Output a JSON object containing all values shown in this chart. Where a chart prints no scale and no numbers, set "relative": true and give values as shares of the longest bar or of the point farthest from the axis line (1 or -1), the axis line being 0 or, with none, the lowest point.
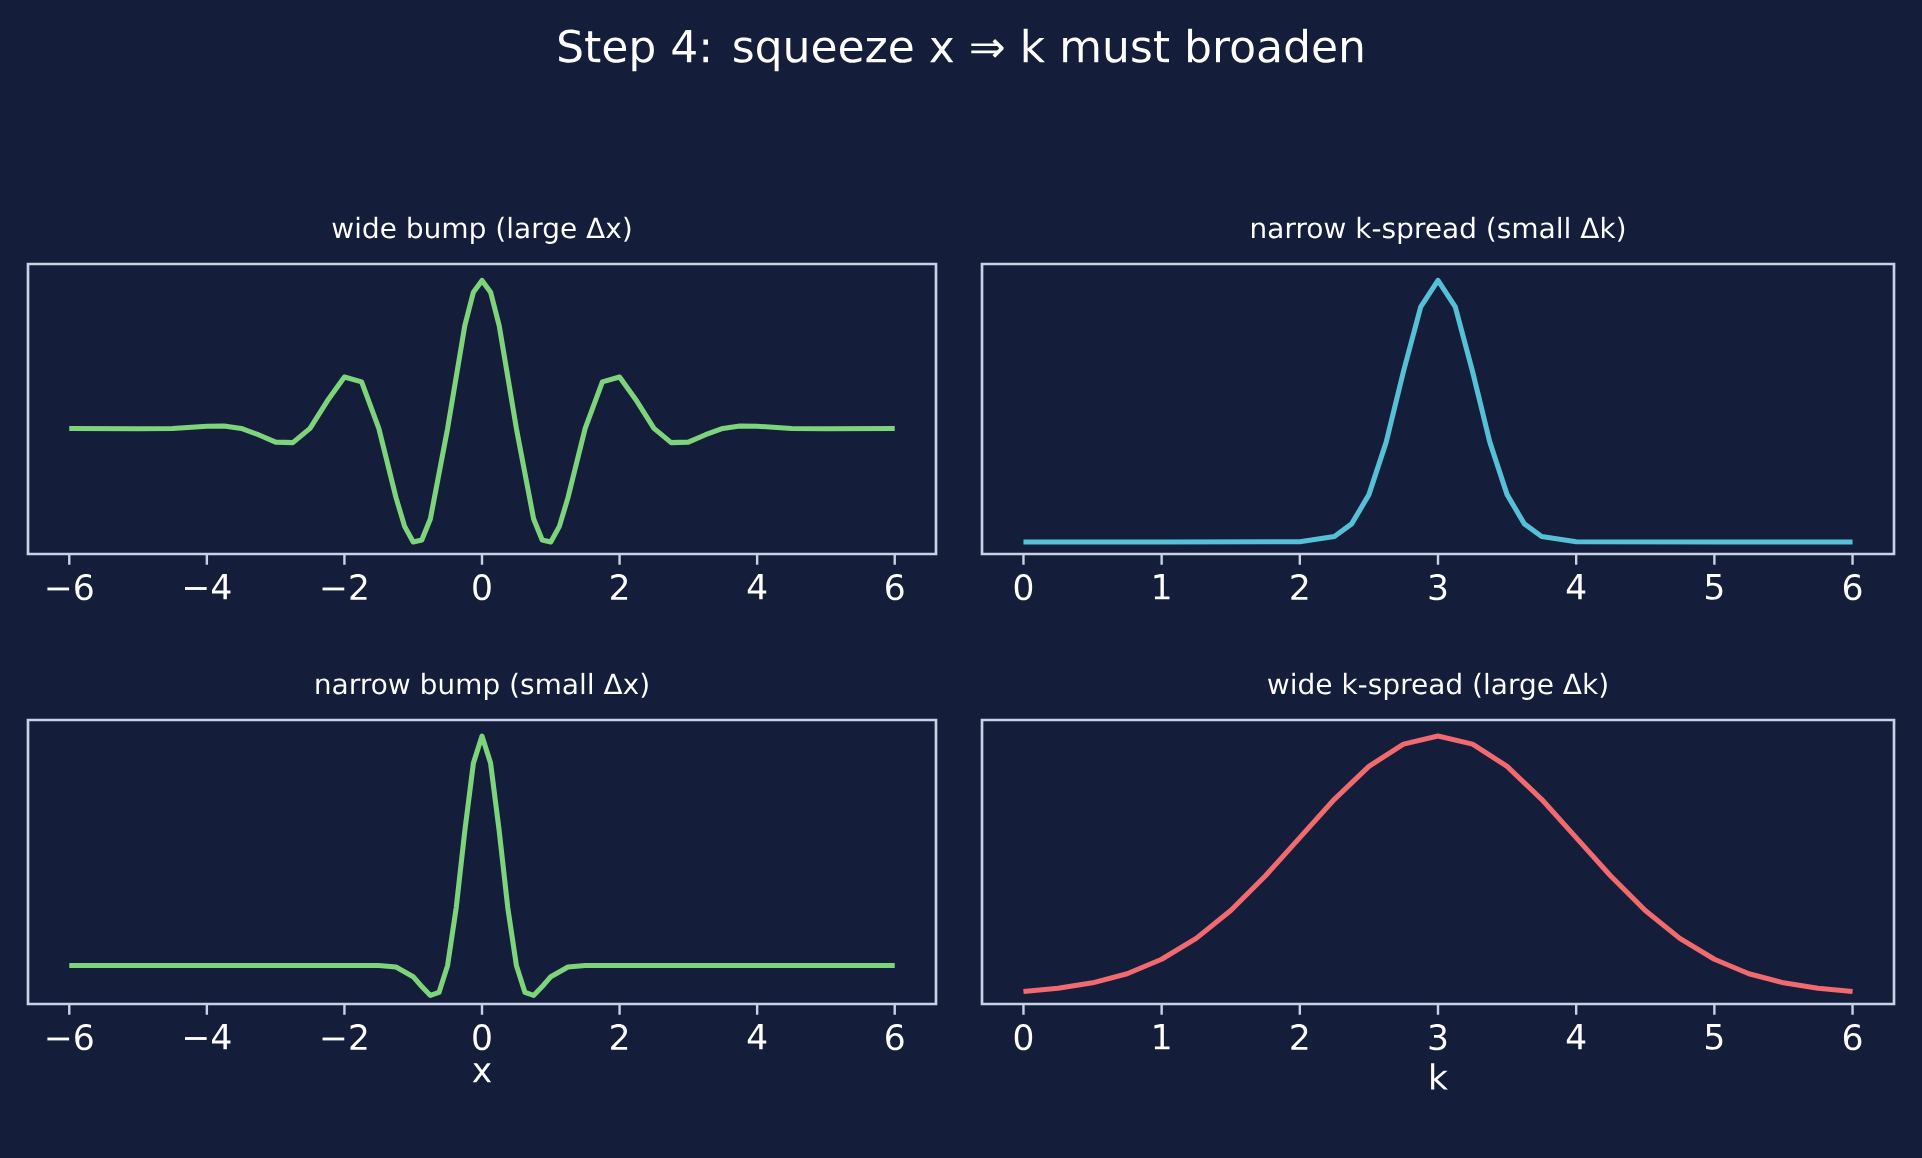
{
  "chart_data": [
    {
      "type": "line",
      "title": "wide bump (large Δx)",
      "annotations": [
        "Step 4: squeeze x  ⇒  k must broaden"
      ],
      "relative": true,
      "tick_labels": "x",
      "color": "#7dd47a",
      "xlim": [
        -6.6,
        6.6
      ],
      "xticks": [
        {
          "value": -6,
          "label": "−6"
        },
        {
          "value": -4,
          "label": "−4"
        },
        {
          "value": -2,
          "label": "−2"
        },
        0,
        2,
        4,
        6
      ],
      "x": [
        -6,
        -5,
        -4.5,
        -4,
        -3.75,
        -3.5,
        -3.25,
        -3,
        -2.75,
        -2.5,
        -2.25,
        -2,
        -1.75,
        -1.5,
        -1.25,
        -1.125,
        -1,
        -0.875,
        -0.75,
        -0.5,
        -0.25,
        -0.125,
        0,
        0.125,
        0.25,
        0.5,
        0.75,
        0.875,
        1,
        1.125,
        1.25,
        1.5,
        1.75,
        2,
        2.25,
        2.5,
        2.75,
        3,
        3.25,
        3.5,
        3.75,
        4,
        4.5,
        5,
        6
      ],
      "values": [
        0.459,
        0.458,
        0.459,
        0.467,
        0.468,
        0.459,
        0.436,
        0.409,
        0.407,
        0.459,
        0.559,
        0.647,
        0.629,
        0.459,
        0.206,
        0.101,
        0.044,
        0.051,
        0.129,
        0.459,
        0.835,
        0.957,
        1,
        0.957,
        0.835,
        0.459,
        0.129,
        0.051,
        0.044,
        0.101,
        0.206,
        0.459,
        0.629,
        0.647,
        0.559,
        0.459,
        0.407,
        0.409,
        0.436,
        0.459,
        0.468,
        0.467,
        0.459,
        0.458,
        0.459
      ]
    },
    {
      "type": "line",
      "title": "narrow k-spread (small Δk)",
      "relative": true,
      "tick_labels": "x",
      "color": "#56c0d6",
      "xlim": [
        -0.3,
        6.3
      ],
      "xticks": [
        0,
        1,
        2,
        3,
        4,
        5,
        6
      ],
      "x": [
        0,
        1,
        2,
        2.25,
        2.375,
        2.5,
        2.625,
        2.75,
        2.875,
        3,
        3.125,
        3.25,
        3.375,
        3.5,
        3.625,
        3.75,
        4,
        5,
        6
      ],
      "values": [
        0.044,
        0.044,
        0.045,
        0.064,
        0.11,
        0.217,
        0.409,
        0.667,
        0.903,
        1,
        0.903,
        0.667,
        0.409,
        0.217,
        0.11,
        0.064,
        0.045,
        0.044,
        0.044
      ]
    },
    {
      "type": "line",
      "title": "narrow bump (small Δx)",
      "xlabel": "x",
      "relative": true,
      "tick_labels": "x",
      "color": "#7dd47a",
      "xlim": [
        -6.6,
        6.6
      ],
      "xticks": [
        {
          "value": -6,
          "label": "−6"
        },
        {
          "value": -4,
          "label": "−4"
        },
        {
          "value": -2,
          "label": "−2"
        },
        0,
        2,
        4,
        6
      ],
      "x": [
        -6,
        -4,
        -2,
        -1.5,
        -1.25,
        -1,
        -0.875,
        -0.75,
        -0.625,
        -0.5,
        -0.375,
        -0.25,
        -0.125,
        0,
        0.125,
        0.25,
        0.375,
        0.5,
        0.625,
        0.75,
        0.875,
        1,
        1.25,
        1.5,
        2,
        4,
        6
      ],
      "values": [
        0.144,
        0.144,
        0.144,
        0.144,
        0.138,
        0.102,
        0.065,
        0.032,
        0.043,
        0.144,
        0.359,
        0.646,
        0.899,
        1,
        0.899,
        0.646,
        0.359,
        0.144,
        0.043,
        0.032,
        0.065,
        0.102,
        0.138,
        0.144,
        0.144,
        0.144,
        0.144
      ]
    },
    {
      "type": "line",
      "title": "wide k-spread (large Δk)",
      "xlabel": "k",
      "relative": true,
      "tick_labels": "x",
      "color": "#f06a6e",
      "xlim": [
        -0.3,
        6.3
      ],
      "xticks": [
        0,
        1,
        2,
        3,
        4,
        5,
        6
      ],
      "x": [
        0,
        0.25,
        0.5,
        0.75,
        1,
        1.25,
        1.5,
        1.75,
        2,
        2.25,
        2.5,
        2.75,
        3,
        3.25,
        3.5,
        3.75,
        4,
        4.25,
        4.5,
        4.75,
        5,
        5.25,
        5.5,
        5.75,
        6
      ],
      "values": [
        0.047,
        0.059,
        0.079,
        0.113,
        0.167,
        0.245,
        0.349,
        0.478,
        0.621,
        0.764,
        0.887,
        0.97,
        1,
        0.97,
        0.887,
        0.764,
        0.621,
        0.478,
        0.349,
        0.245,
        0.167,
        0.113,
        0.079,
        0.059,
        0.047
      ]
    }
  ]
}
